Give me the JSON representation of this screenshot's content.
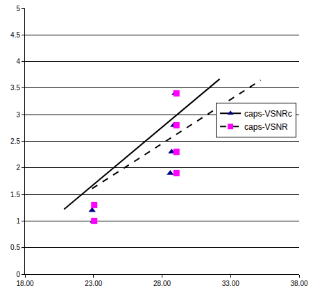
{
  "chart_data": {
    "type": "scatter",
    "xlim": [
      18,
      38
    ],
    "xticks": [
      {
        "value": 18,
        "label": "18.00"
      },
      {
        "value": 23,
        "label": "23.00"
      },
      {
        "value": 28,
        "label": "28.00"
      },
      {
        "value": 33,
        "label": "33.00"
      },
      {
        "value": 38,
        "label": "38.00"
      }
    ],
    "ylim": [
      0,
      5
    ],
    "yticks": [
      0,
      0.5,
      1,
      1.5,
      2,
      2.5,
      3,
      3.5,
      4,
      4.5,
      5
    ],
    "grid": true,
    "legend": "right",
    "series": [
      {
        "name": "caps-VSNRc",
        "color": "#000080",
        "marker": "triangle",
        "line_style": "solid",
        "x": [
          23.0,
          22.9,
          28.6,
          28.7,
          28.85,
          28.95
        ],
        "values": [
          1.0,
          1.2,
          1.9,
          2.3,
          2.8,
          3.4
        ],
        "trendline": {
          "x": [
            20.85,
            32.2
          ],
          "values": [
            1.22,
            3.67
          ]
        }
      },
      {
        "name": "caps-VSNR",
        "color": "#ff00ff",
        "marker": "square",
        "line_style": "dashed",
        "x": [
          23.05,
          23.05,
          29.05,
          29.05,
          29.05,
          29.05
        ],
        "values": [
          1.0,
          1.3,
          1.9,
          2.3,
          2.8,
          3.4
        ],
        "trendline": {
          "x": [
            22.9,
            35.2
          ],
          "values": [
            1.61,
            3.65
          ]
        }
      }
    ]
  }
}
